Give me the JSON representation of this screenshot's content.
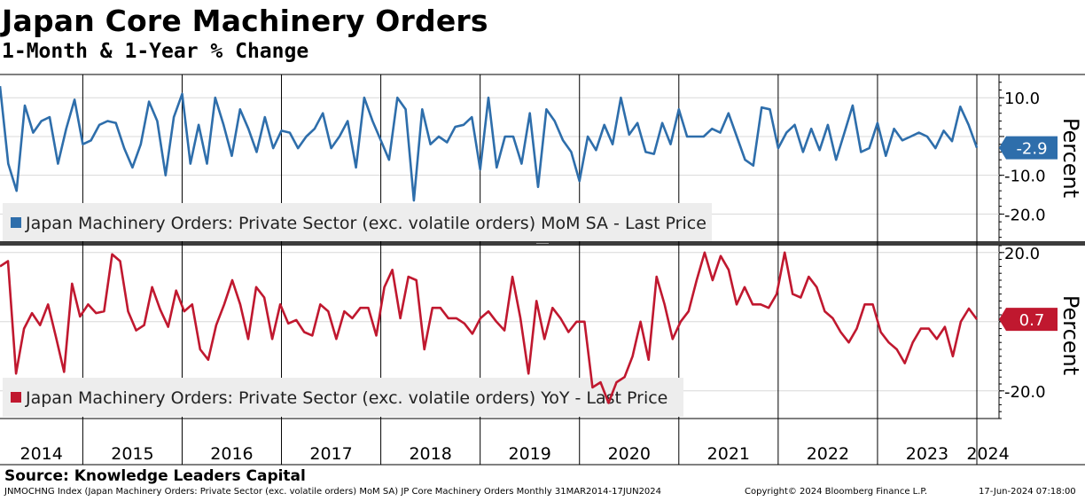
{
  "header": {
    "title": "Japan Core Machinery Orders",
    "subtitle": "1-Month & 1-Year % Change"
  },
  "source": "Source: Knowledge Leaders Capital",
  "footer": {
    "index_info": "JNMOCHNG Index (Japan Machinery Orders: Private Sector (exc. volatile orders) MoM SA) JP Core Machinery Orders  Monthly 31MAR2014-17JUN2024",
    "copyright": "Copyright© 2024 Bloomberg Finance L.P.",
    "timestamp": "17-Jun-2024 07:18:00"
  },
  "colors": {
    "mom": "#2e6eab",
    "yoy": "#c0182f"
  },
  "chart_data": [
    {
      "type": "line",
      "name": "mom",
      "legend": "Japan Machinery Orders: Private Sector (exc. volatile orders) MoM SA - Last Price",
      "ylabel": "Percent",
      "ylim": [
        -27,
        16
      ],
      "yticks": [
        10,
        -10,
        -20
      ],
      "ytick_labels": [
        "10.0",
        "-10.0",
        "-20.0"
      ],
      "last_value_label": "-2.9",
      "start": "2014-03",
      "values": [
        13,
        -7,
        -14,
        8,
        1,
        4,
        5,
        -7,
        2,
        9.5,
        -2,
        -1,
        3,
        4,
        3.5,
        -3,
        -8,
        -2,
        9,
        4,
        -10,
        5,
        11,
        -7,
        3,
        -7,
        10,
        3,
        -5,
        7,
        2,
        -4,
        5,
        -3,
        1.5,
        1,
        -3,
        0,
        2,
        6,
        -3,
        0,
        4,
        -8,
        10,
        4,
        -1,
        -6,
        10,
        7,
        -16.5,
        7,
        -2,
        0,
        -1.5,
        2.5,
        3,
        5,
        -8.5,
        10,
        -8,
        0,
        0,
        -7,
        6,
        -13,
        7,
        4,
        -1,
        -4,
        -11.5,
        0,
        -3.5,
        3,
        -2,
        10,
        0.5,
        3.5,
        -4,
        -4.5,
        3.5,
        -2,
        7,
        0,
        0,
        0,
        2,
        1,
        6,
        0,
        -6,
        -7.5,
        7.5,
        7,
        -3,
        1,
        3,
        -4,
        2,
        -3.5,
        3,
        -6,
        1,
        8,
        -4,
        -3,
        3.5,
        -5,
        2,
        -1,
        0,
        1,
        0,
        -3,
        1.5,
        -1.2,
        7.7,
        3,
        -2.9
      ]
    },
    {
      "type": "line",
      "name": "yoy",
      "legend": "Japan Machinery Orders: Private Sector (exc. volatile orders) YoY - Last Price",
      "ylabel": "Percent",
      "ylim": [
        -28,
        22
      ],
      "yticks": [
        20,
        -20
      ],
      "ytick_labels": [
        "20.0",
        "-20.0"
      ],
      "last_value_label": "0.7",
      "start": "2014-03",
      "values": [
        16,
        17.5,
        -15,
        -2,
        2.5,
        -1,
        5,
        -4.5,
        -14.5,
        11,
        1.5,
        5,
        2.5,
        3,
        19.5,
        17.5,
        3,
        -2.5,
        -1,
        10,
        3.5,
        -1.5,
        9,
        3,
        5,
        -8,
        -11,
        -1,
        5,
        12,
        5,
        -5,
        10,
        7,
        -5,
        5,
        -0.5,
        0.5,
        -3,
        -4,
        5,
        3,
        -5,
        3,
        1,
        4,
        4,
        -4,
        10,
        15,
        1,
        13,
        12,
        -8,
        4,
        4,
        1,
        1,
        -0.5,
        -3.5,
        1,
        3,
        0,
        -2.5,
        13,
        1,
        -15,
        6,
        -5,
        4,
        1,
        -3,
        0,
        0,
        -19,
        -17.5,
        -23.5,
        -17.5,
        -16,
        -10,
        0,
        -11,
        13,
        5,
        -5,
        0,
        3,
        12,
        20,
        12,
        19,
        15,
        5,
        10,
        5,
        5,
        4,
        8,
        20,
        8,
        7,
        13,
        10,
        3,
        1,
        -3,
        -6,
        -2,
        5,
        5,
        -3,
        -6,
        -8,
        -12,
        -6,
        -2,
        -2,
        -5,
        -1.5,
        -10,
        0,
        3.8,
        0.7
      ]
    }
  ],
  "x_axis": {
    "year_labels": [
      "2014",
      "2015",
      "2016",
      "2017",
      "2018",
      "2019",
      "2020",
      "2021",
      "2022",
      "2023",
      "2024"
    ]
  }
}
